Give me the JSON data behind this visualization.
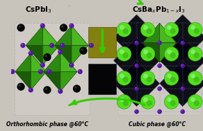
{
  "title_left": "CsPbI$_3$",
  "title_right": "CsBa$_x$Pb$_{1-x}$I$_3$",
  "label_left": "Orthorhombic phase @60°C",
  "label_right": "Cubic phase @60°C",
  "bg_color": "#c8c4bc",
  "green_face1": "#2d8a10",
  "green_face2": "#4ab820",
  "green_face3": "#1a5a08",
  "green_face4": "#38a015",
  "black_color": "#050508",
  "purple_color": "#5515a0",
  "cs_green": "#55dd22",
  "arrow_color": "#33cc00",
  "olive_color": "#848010",
  "dark_navy": "#05050f"
}
